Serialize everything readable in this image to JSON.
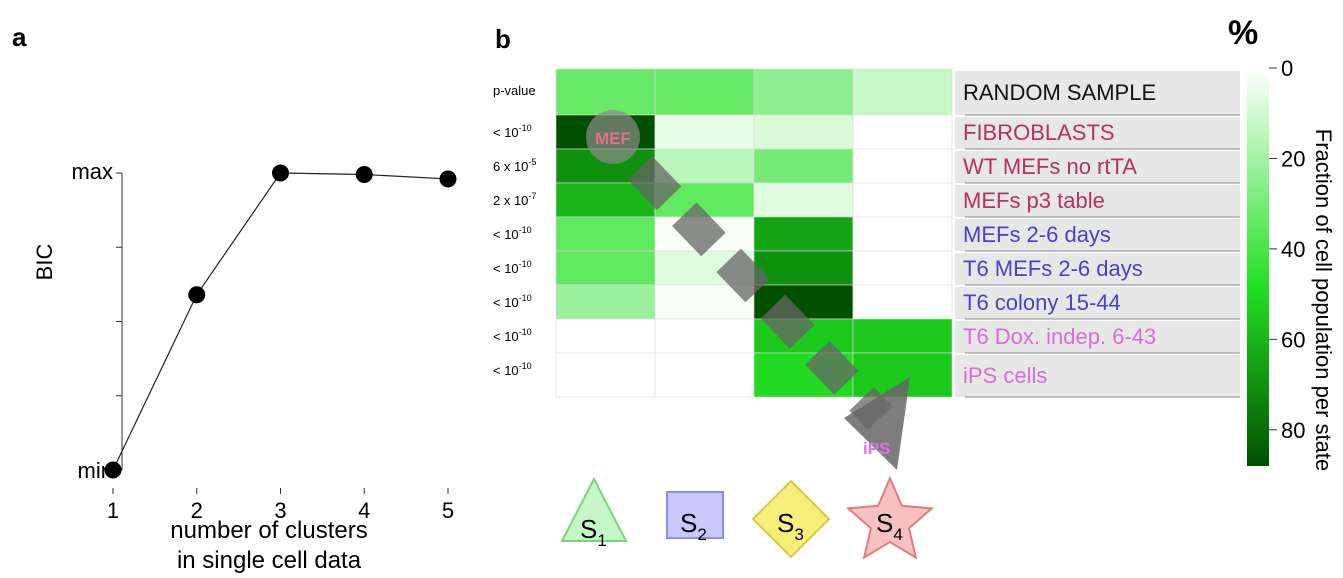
{
  "panel_a": {
    "letter": "a",
    "ylabel": "BIC",
    "xlabel_line1": "number of clusters",
    "xlabel_line2": "in single cell data",
    "ytick_max": "max",
    "ytick_min": "min"
  },
  "panel_b": {
    "letter": "b",
    "colorbar_title": "%",
    "colorbar_label": "Fraction of cell population per state",
    "mef_label": "MEF",
    "ips_label": "iPS",
    "state_labels": [
      {
        "base": "S",
        "sub": "1"
      },
      {
        "base": "S",
        "sub": "2"
      },
      {
        "base": "S",
        "sub": "3"
      },
      {
        "base": "S",
        "sub": "4"
      }
    ],
    "state_colors": [
      {
        "fill": "#c6f7c6",
        "stroke": "#7ad67a"
      },
      {
        "fill": "#c8c8fa",
        "stroke": "#8e8ee6"
      },
      {
        "fill": "#f6f07a",
        "stroke": "#d8c93c"
      },
      {
        "fill": "#f8c0c0",
        "stroke": "#e07c7c"
      }
    ]
  },
  "chart_data": [
    {
      "type": "line",
      "x": [
        1,
        2,
        3,
        4,
        5
      ],
      "y": [
        0.0,
        0.59,
        1.0,
        0.995,
        0.98
      ],
      "xticks": [
        "1",
        "2",
        "3",
        "4",
        "5"
      ],
      "ylim": [
        0,
        1
      ],
      "marker_color": "#000000"
    },
    {
      "type": "heatmap",
      "columns": [
        "S1",
        "S2",
        "S3",
        "S4"
      ],
      "rows": [
        {
          "label": "RANDOM SAMPLE",
          "pvalue": "p-value",
          "color": "#111111",
          "values": [
            33,
            33,
            25,
            12
          ]
        },
        {
          "label": "FIBROBLASTS",
          "pvalue": "< 10^-10",
          "color": "#b5335a",
          "values": [
            88,
            5,
            8,
            0
          ]
        },
        {
          "label": "WT MEFs no rtTA",
          "pvalue": "6 x 10^-5",
          "color": "#b5335a",
          "values": [
            70,
            15,
            30,
            0
          ]
        },
        {
          "label": "MEFs p3 table",
          "pvalue": "2 x 10^-7",
          "color": "#b5335a",
          "values": [
            60,
            35,
            7,
            0
          ]
        },
        {
          "label": "MEFs 2-6 days",
          "pvalue": "< 10^-10",
          "color": "#4b3fcf",
          "values": [
            35,
            2,
            65,
            0
          ]
        },
        {
          "label": "T6 MEFs 2-6 days",
          "pvalue": "< 10^-10",
          "color": "#4b3fcf",
          "values": [
            35,
            7,
            70,
            0
          ]
        },
        {
          "label": "T6 colony 15-44",
          "pvalue": "< 10^-10",
          "color": "#4b3fcf",
          "values": [
            22,
            2,
            88,
            0
          ]
        },
        {
          "label": "T6 Dox. indep. 6-43",
          "pvalue": "< 10^-10",
          "color": "#d86dd8",
          "values": [
            0,
            0,
            55,
            55
          ]
        },
        {
          "label": "iPS cells",
          "pvalue": "< 10^-10",
          "color": "#d86dd8",
          "values": [
            0,
            0,
            50,
            55
          ]
        }
      ],
      "colorbar": {
        "ticks": [
          "0",
          "20",
          "40",
          "60",
          "80"
        ],
        "tick_values": [
          0,
          20,
          40,
          60,
          80
        ],
        "range": [
          0,
          88
        ]
      }
    }
  ]
}
